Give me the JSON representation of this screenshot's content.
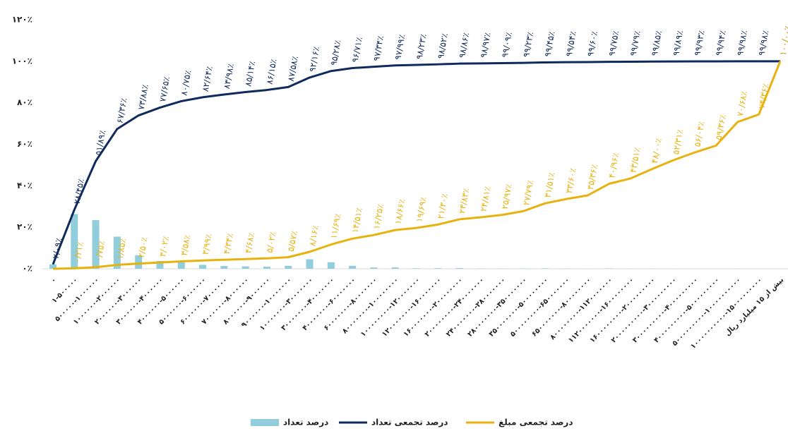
{
  "chart_data": {
    "type": "combo",
    "categories": [
      "۰",
      "۱-۵۰۰۰۰۰",
      "۵۰۰۰۰۰-۱۰۰۰۰۰۰",
      "۱۰۰۰۰۰۰-۲۰۰۰۰۰۰",
      "۲۰۰۰۰۰۰-۳۰۰۰۰۰۰",
      "۳۰۰۰۰۰۰-۴۰۰۰۰۰۰",
      "۴۰۰۰۰۰۰-۵۰۰۰۰۰۰",
      "۵۰۰۰۰۰۰-۶۰۰۰۰۰۰",
      "۶۰۰۰۰۰۰-۷۰۰۰۰۰۰",
      "۷۰۰۰۰۰۰-۸۰۰۰۰۰۰",
      "۸۰۰۰۰۰۰-۹۰۰۰۰۰۰",
      "۹۰۰۰۰۰۰-۱۰۰۰۰۰۰۰",
      "۱۰۰۰۰۰۰۰-۳۰۰۰۰۰۰۰",
      "۳۰۰۰۰۰۰۰-۴۰۰۰۰۰۰۰",
      "۴۰۰۰۰۰۰۰-۶۰۰۰۰۰۰۰",
      "۶۰۰۰۰۰۰۰-۸۰۰۰۰۰۰۰",
      "۸۰۰۰۰۰۰۰-۱۰۰۰۰۰۰۰۰",
      "۱۰۰۰۰۰۰۰۰-۱۲۰۰۰۰۰۰۰",
      "۱۲۰۰۰۰۰۰۰-۱۶۰۰۰۰۰۰۰",
      "۱۶۰۰۰۰۰۰۰-۲۰۰۰۰۰۰۰۰",
      "۲۰۰۰۰۰۰۰۰-۲۴۰۰۰۰۰۰۰",
      "۲۴۰۰۰۰۰۰۰-۲۸۰۰۰۰۰۰۰",
      "۲۸۰۰۰۰۰۰۰-۳۵۰۰۰۰۰۰۰",
      "۳۵۰۰۰۰۰۰۰-۵۰۰۰۰۰۰۰۰",
      "۵۰۰۰۰۰۰۰۰-۶۵۰۰۰۰۰۰۰",
      "۶۵۰۰۰۰۰۰۰-۸۰۰۰۰۰۰۰۰",
      "۸۰۰۰۰۰۰۰۰-۱۱۲۰۰۰۰۰۰۰",
      "۱۱۲۰۰۰۰۰۰۰-۱۶۰۰۰۰۰۰۰۰",
      "۱۶۰۰۰۰۰۰۰۰-۲۰۰۰۰۰۰۰۰۰",
      "۲۰۰۰۰۰۰۰۰۰-۳۰۰۰۰۰۰۰۰۰",
      "۳۰۰۰۰۰۰۰۰۰-۴۰۰۰۰۰۰۰۰۰",
      "۴۰۰۰۰۰۰۰۰۰-۵۰۰۰۰۰۰۰۰۰",
      "۵۰۰۰۰۰۰۰۰۰-۱۰۰۰۰۰۰۰۰۰۰",
      "۱۰۰۰۰۰۰۰۰۰۰-۱۵۰۰۰۰۰۰۰۰۰",
      "بیش از ۱۵ میلیارد ریال"
    ],
    "series": [
      {
        "name": "درصد تعداد",
        "type": "bar",
        "color": "#92cddc",
        "values": [
          2.09,
          26.36,
          23.44,
          15.47,
          6.52,
          3.77,
          3.1,
          1.89,
          1.34,
          1.16,
          1.01,
          1.43,
          4.58,
          3.12,
          1.43,
          0.63,
          0.65,
          0.24,
          0.29,
          0.34,
          0.11,
          0.12,
          0.14,
          0.22,
          0.09,
          0.06,
          0.15,
          0.04,
          0.06,
          0.04,
          0.04,
          0.01,
          0.04,
          0,
          0.02
        ]
      },
      {
        "name": "درصد تجمعی تعداد",
        "type": "line",
        "color": "#0f2a5c",
        "values": [
          2.09,
          28.45,
          51.89,
          67.36,
          73.88,
          77.65,
          80.75,
          82.64,
          83.98,
          85.14,
          86.15,
          87.58,
          92.16,
          95.28,
          96.71,
          97.34,
          97.99,
          98.23,
          98.52,
          98.86,
          98.97,
          99.09,
          99.23,
          99.45,
          99.54,
          99.6,
          99.75,
          99.79,
          99.85,
          99.89,
          99.93,
          99.94,
          99.98,
          99.98,
          100
        ],
        "value_labels": [
          "۲/۰۹٪",
          "۲۸/۴۵٪",
          "۵۱/۸۹٪",
          "۶۷/۳۶٪",
          "۷۳/۸۸٪",
          "۷۷/۶۵٪",
          "۸۰/۷۵٪",
          "۸۲/۶۴٪",
          "۸۳/۹۸٪",
          "۸۵/۱۴٪",
          "۸۶/۱۵٪",
          "۸۷/۵۸٪",
          "۹۲/۱۶٪",
          "۹۵/۲۸٪",
          "۹۶/۷۱٪",
          "۹۷/۳۴٪",
          "۹۷/۹۹٪",
          "۹۸/۲۳٪",
          "۹۸/۵۲٪",
          "۹۸/۸۶٪",
          "۹۸/۹۷٪",
          "۹۹/۰۹٪",
          "۹۹/۲۳٪",
          "۹۹/۴۵٪",
          "۹۹/۵۴٪",
          "۹۹/۶۰٪",
          "۹۹/۷۵٪",
          "۹۹/۷۹٪",
          "۹۹/۸۵٪",
          "۹۹/۸۹٪",
          "۹۹/۹۳٪",
          "۹۹/۹۴٪",
          "۹۹/۹۸٪",
          "۹۹/۹۸٪",
          "۱۰۰/۰۰٪"
        ]
      },
      {
        "name": "درصد تجمعی مبلغ",
        "type": "line",
        "color": "#e8b20e",
        "values": [
          0,
          0.21,
          0.75,
          1.85,
          2.5,
          3.02,
          3.58,
          3.99,
          4.34,
          4.68,
          5.02,
          5.57,
          8.16,
          11.69,
          14.51,
          16.25,
          18.66,
          19.69,
          21.3,
          23.83,
          24.81,
          25.97,
          27.79,
          31.51,
          33.6,
          35.36,
          40.96,
          43.51,
          48,
          52.31,
          56.04,
          59.36,
          70.68,
          74.36,
          100
        ],
        "value_labels": [
          null,
          "۰/۲۱٪",
          "۰/۷۵٪",
          "۱/۸۵٪",
          "۲/۵۰٪",
          "۳/۰۲٪",
          "۳/۵۸٪",
          "۳/۹۹٪",
          "۴/۳۴٪",
          "۴/۶۸٪",
          "۵/۰۲٪",
          "۵/۵۷٪",
          "۸/۱۶٪",
          "۱۱/۶۹٪",
          "۱۴/۵۱٪",
          "۱۶/۲۵٪",
          "۱۸/۶۶٪",
          "۱۹/۶۹٪",
          "۲۱/۳۰٪",
          "۲۳/۸۳٪",
          "۲۴/۸۱٪",
          "۲۵/۹۷٪",
          "۲۷/۷۹٪",
          "۳۱/۵۱٪",
          "۳۳/۶۰٪",
          "۳۵/۳۶٪",
          "۴۰/۹۶٪",
          "۴۳/۵۱٪",
          "۴۸/۰۰٪",
          "۵۲/۳۱٪",
          "۵۶/۰۴٪",
          "۵۹/۳۶٪",
          "۷۰/۶۸٪",
          "۷۴/۳۶٪",
          "۱۰۰/۰۰٪"
        ]
      }
    ],
    "ylim": [
      0,
      120
    ],
    "yticks": [
      {
        "value": 0,
        "label": "۰٪"
      },
      {
        "value": 20,
        "label": "۲۰٪"
      },
      {
        "value": 40,
        "label": "۴۰٪"
      },
      {
        "value": 60,
        "label": "۶۰٪"
      },
      {
        "value": 80,
        "label": "۸۰٪"
      },
      {
        "value": 100,
        "label": "۱۰۰٪"
      },
      {
        "value": 120,
        "label": "۱۲۰٪"
      }
    ],
    "grid": false,
    "legend": "bottom"
  }
}
